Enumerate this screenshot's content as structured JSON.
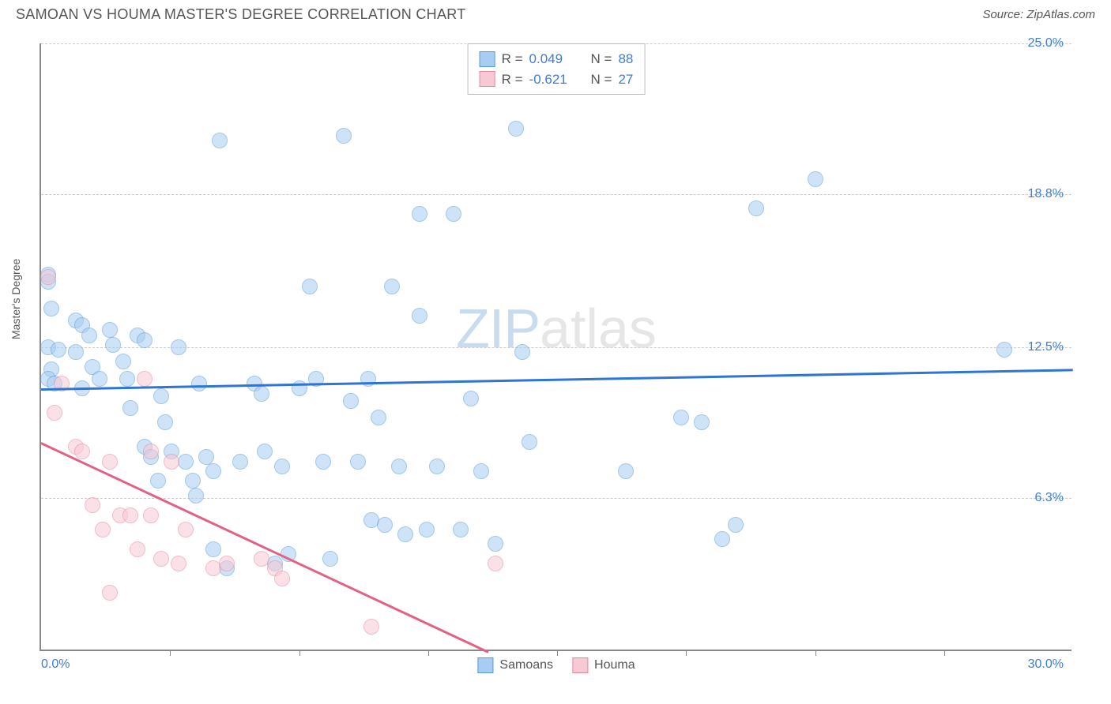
{
  "title": "SAMOAN VS HOUMA MASTER'S DEGREE CORRELATION CHART",
  "source": "Source: ZipAtlas.com",
  "yaxis_label": "Master's Degree",
  "watermark": {
    "zip": "ZIP",
    "atlas": "atlas"
  },
  "chart": {
    "type": "scatter",
    "xlim": [
      0,
      30
    ],
    "ylim": [
      0,
      25
    ],
    "xaxis_min_label": "0.0%",
    "xaxis_max_label": "30.0%",
    "xticks": [
      3.75,
      7.5,
      11.25,
      15,
      18.75,
      22.5,
      26.25
    ],
    "yticks": [
      {
        "value": 6.3,
        "label": "6.3%"
      },
      {
        "value": 12.5,
        "label": "12.5%"
      },
      {
        "value": 18.8,
        "label": "18.8%"
      },
      {
        "value": 25.0,
        "label": "25.0%"
      }
    ],
    "background_color": "#ffffff",
    "grid_color": "#cccccc",
    "axis_color": "#888888",
    "label_color": "#3b7dd8",
    "title_fontsize": 18,
    "tick_fontsize": 16,
    "point_radius": 10,
    "point_opacity": 0.55,
    "series": [
      {
        "name": "Samoans",
        "fill_color": "#a7cdf2",
        "stroke_color": "#5b9bd5",
        "R": "0.049",
        "N": "88",
        "trend": {
          "x1": 0,
          "y1": 10.8,
          "x2": 30,
          "y2": 11.6,
          "color": "#2e75d6"
        },
        "points": [
          [
            0.2,
            15.5
          ],
          [
            0.2,
            15.2
          ],
          [
            0.3,
            14.1
          ],
          [
            0.2,
            12.5
          ],
          [
            0.5,
            12.4
          ],
          [
            0.3,
            11.6
          ],
          [
            0.2,
            11.2
          ],
          [
            0.4,
            11.0
          ],
          [
            1.0,
            13.6
          ],
          [
            1.2,
            13.4
          ],
          [
            1.4,
            13.0
          ],
          [
            1.0,
            12.3
          ],
          [
            1.5,
            11.7
          ],
          [
            1.7,
            11.2
          ],
          [
            1.2,
            10.8
          ],
          [
            2.0,
            13.2
          ],
          [
            2.1,
            12.6
          ],
          [
            2.4,
            11.9
          ],
          [
            2.5,
            11.2
          ],
          [
            2.8,
            13.0
          ],
          [
            2.6,
            10.0
          ],
          [
            3.0,
            8.4
          ],
          [
            3.2,
            8.0
          ],
          [
            3.0,
            12.8
          ],
          [
            3.4,
            7.0
          ],
          [
            3.5,
            10.5
          ],
          [
            3.6,
            9.4
          ],
          [
            3.8,
            8.2
          ],
          [
            4.0,
            12.5
          ],
          [
            4.2,
            7.8
          ],
          [
            4.4,
            7.0
          ],
          [
            4.5,
            6.4
          ],
          [
            4.6,
            11.0
          ],
          [
            4.8,
            8.0
          ],
          [
            5.0,
            7.4
          ],
          [
            5.0,
            4.2
          ],
          [
            5.2,
            21.0
          ],
          [
            5.4,
            3.4
          ],
          [
            5.8,
            7.8
          ],
          [
            6.2,
            11.0
          ],
          [
            6.4,
            10.6
          ],
          [
            6.5,
            8.2
          ],
          [
            6.8,
            3.6
          ],
          [
            7.0,
            7.6
          ],
          [
            7.2,
            4.0
          ],
          [
            7.5,
            10.8
          ],
          [
            7.8,
            15.0
          ],
          [
            8.0,
            11.2
          ],
          [
            8.2,
            7.8
          ],
          [
            8.4,
            3.8
          ],
          [
            8.8,
            21.2
          ],
          [
            9.0,
            10.3
          ],
          [
            9.2,
            7.8
          ],
          [
            9.5,
            11.2
          ],
          [
            9.6,
            5.4
          ],
          [
            9.8,
            9.6
          ],
          [
            10.0,
            5.2
          ],
          [
            10.2,
            15.0
          ],
          [
            10.4,
            7.6
          ],
          [
            10.6,
            4.8
          ],
          [
            11.0,
            18.0
          ],
          [
            11.0,
            13.8
          ],
          [
            11.2,
            5.0
          ],
          [
            11.5,
            7.6
          ],
          [
            12.0,
            18.0
          ],
          [
            12.2,
            5.0
          ],
          [
            12.5,
            10.4
          ],
          [
            12.8,
            7.4
          ],
          [
            13.2,
            4.4
          ],
          [
            13.8,
            21.5
          ],
          [
            14.0,
            12.3
          ],
          [
            14.2,
            8.6
          ],
          [
            17.0,
            7.4
          ],
          [
            18.6,
            9.6
          ],
          [
            19.2,
            9.4
          ],
          [
            19.8,
            4.6
          ],
          [
            20.8,
            18.2
          ],
          [
            20.2,
            5.2
          ],
          [
            22.5,
            19.4
          ],
          [
            28.0,
            12.4
          ]
        ]
      },
      {
        "name": "Houma",
        "fill_color": "#f7c9d4",
        "stroke_color": "#e687a0",
        "R": "-0.621",
        "N": "27",
        "trend": {
          "x1": 0,
          "y1": 8.6,
          "x2": 13,
          "y2": 0,
          "color": "#e26284"
        },
        "points": [
          [
            0.2,
            15.4
          ],
          [
            0.4,
            9.8
          ],
          [
            0.6,
            11.0
          ],
          [
            1.0,
            8.4
          ],
          [
            1.2,
            8.2
          ],
          [
            1.5,
            6.0
          ],
          [
            1.8,
            5.0
          ],
          [
            2.0,
            7.8
          ],
          [
            2.0,
            2.4
          ],
          [
            2.3,
            5.6
          ],
          [
            2.6,
            5.6
          ],
          [
            2.8,
            4.2
          ],
          [
            3.0,
            11.2
          ],
          [
            3.2,
            5.6
          ],
          [
            3.2,
            8.2
          ],
          [
            3.5,
            3.8
          ],
          [
            3.8,
            7.8
          ],
          [
            4.0,
            3.6
          ],
          [
            4.2,
            5.0
          ],
          [
            5.0,
            3.4
          ],
          [
            5.4,
            3.6
          ],
          [
            6.4,
            3.8
          ],
          [
            6.8,
            3.4
          ],
          [
            7.0,
            3.0
          ],
          [
            9.6,
            1.0
          ],
          [
            13.2,
            3.6
          ]
        ]
      }
    ]
  },
  "legend_top": {
    "rows": [
      {
        "swatch_fill": "#a7cdf2",
        "swatch_stroke": "#5b9bd5",
        "r": "0.049",
        "n": "88"
      },
      {
        "swatch_fill": "#f7c9d4",
        "swatch_stroke": "#e687a0",
        "r": "-0.621",
        "n": "27"
      }
    ]
  },
  "legend_bottom": {
    "items": [
      {
        "swatch_fill": "#a7cdf2",
        "swatch_stroke": "#5b9bd5",
        "label": "Samoans"
      },
      {
        "swatch_fill": "#f7c9d4",
        "swatch_stroke": "#e687a0",
        "label": "Houma"
      }
    ]
  }
}
